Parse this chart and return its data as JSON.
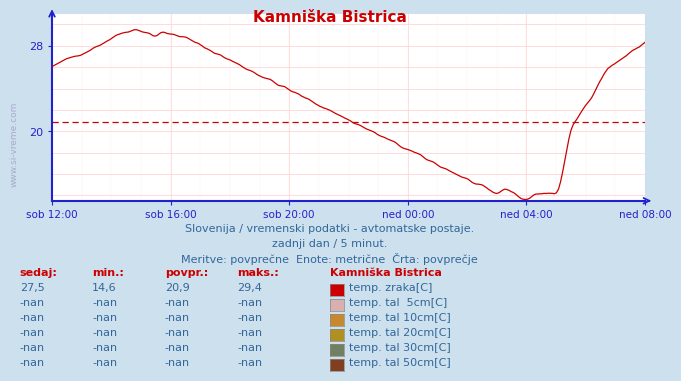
{
  "title": "Kamniška Bistrica",
  "bg_color": "#cce0ee",
  "plot_bg_color": "#ffffff",
  "axis_color": "#2222cc",
  "title_color": "#cc0000",
  "line_color": "#cc0000",
  "avg_line_value": 20.9,
  "ylim": [
    13.5,
    31.0
  ],
  "ytick_labels": [
    "20",
    "28"
  ],
  "ytick_values": [
    20,
    28
  ],
  "x_labels": [
    "sob 12:00",
    "sob 16:00",
    "sob 20:00",
    "ned 00:00",
    "ned 04:00",
    "ned 08:00"
  ],
  "x_tick_fracs": [
    0.0,
    0.2,
    0.4,
    0.6,
    0.8,
    1.0
  ],
  "subtitle1": "Slovenija / vremenski podatki - avtomatske postaje.",
  "subtitle2": "zadnji dan / 5 minut.",
  "subtitle3": "Meritve: povprečne  Enote: metrične  Črta: povprečje",
  "subtitle_color": "#336699",
  "watermark": "www.si-vreme.com",
  "table_headers": [
    "sedaj:",
    "min.:",
    "povpr.:",
    "maks.:"
  ],
  "table_header_color": "#cc0000",
  "table_value_color": "#336699",
  "legend_title": "Kamniška Bistrica",
  "legend_title_color": "#cc0000",
  "legend_items": [
    {
      "label": "temp. zraka[C]",
      "color": "#cc0000"
    },
    {
      "label": "temp. tal  5cm[C]",
      "color": "#d8b0b0"
    },
    {
      "label": "temp. tal 10cm[C]",
      "color": "#c88830"
    },
    {
      "label": "temp. tal 20cm[C]",
      "color": "#b09020"
    },
    {
      "label": "temp. tal 30cm[C]",
      "color": "#708060"
    },
    {
      "label": "temp. tal 50cm[C]",
      "color": "#804020"
    }
  ],
  "table_rows": [
    {
      "sedaj": "27,5",
      "min": "14,6",
      "povpr": "20,9",
      "maks": "29,4"
    },
    {
      "sedaj": "-nan",
      "min": "-nan",
      "povpr": "-nan",
      "maks": "-nan"
    },
    {
      "sedaj": "-nan",
      "min": "-nan",
      "povpr": "-nan",
      "maks": "-nan"
    },
    {
      "sedaj": "-nan",
      "min": "-nan",
      "povpr": "-nan",
      "maks": "-nan"
    },
    {
      "sedaj": "-nan",
      "min": "-nan",
      "povpr": "-nan",
      "maks": "-nan"
    },
    {
      "sedaj": "-nan",
      "min": "-nan",
      "povpr": "-nan",
      "maks": "-nan"
    }
  ]
}
